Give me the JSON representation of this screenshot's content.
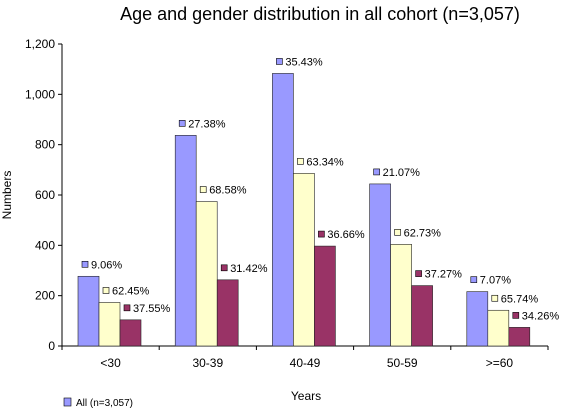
{
  "chart_data": {
    "type": "bar",
    "title": "Age and gender distribution in all cohort (n=3,057)",
    "xlabel": "Years",
    "ylabel": "Numbers",
    "ylim": [
      0,
      1200
    ],
    "yticks": [
      "0",
      "200",
      "400",
      "600",
      "800",
      "1,000",
      "1,200"
    ],
    "yticks_values": [
      0,
      200,
      400,
      600,
      800,
      1000,
      1200
    ],
    "grid": false,
    "legend_position": "bottom-left",
    "categories": [
      "<30",
      "30-39",
      "40-49",
      "50-59",
      ">=60"
    ],
    "series": [
      {
        "name": "All (n=3,057)",
        "color": "#9999ff",
        "values": [
          277,
          837,
          1083,
          644,
          216
        ],
        "labels": [
          "9.06%",
          "27.38%",
          "35.43%",
          "21.07%",
          "7.07%"
        ]
      },
      {
        "color": "#ffffcc",
        "values": [
          173,
          574,
          686,
          404,
          142
        ],
        "labels": [
          "62.45%",
          "68.58%",
          "63.34%",
          "62.73%",
          "65.74%"
        ]
      },
      {
        "color": "#993366",
        "values": [
          104,
          263,
          397,
          240,
          74
        ],
        "labels": [
          "37.55%",
          "31.42%",
          "36.66%",
          "37.27%",
          "34.26%"
        ]
      }
    ]
  }
}
